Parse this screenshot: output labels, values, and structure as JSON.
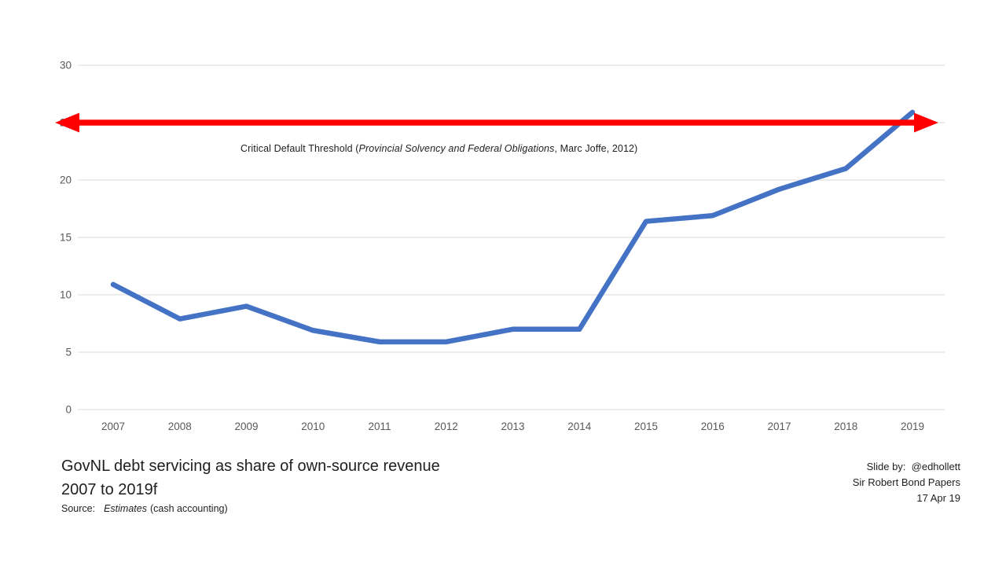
{
  "chart_data": {
    "type": "line",
    "title": "GovNL debt servicing as share of own-source revenue, 2007 to 2019f",
    "categories": [
      "2007",
      "2008",
      "2009",
      "2010",
      "2011",
      "2012",
      "2013",
      "2014",
      "2015",
      "2016",
      "2017",
      "2018",
      "2019"
    ],
    "series": [
      {
        "name": "GovNL debt servicing as share of own-source revenue (%)",
        "color": "#4472C4",
        "values": [
          10.9,
          7.9,
          9.0,
          6.9,
          5.9,
          5.9,
          7.0,
          7.0,
          16.4,
          16.9,
          19.2,
          21.0,
          25.9
        ]
      }
    ],
    "ylim": [
      0,
      30
    ],
    "yticks": [
      0,
      5,
      10,
      15,
      20,
      25,
      30
    ],
    "xlabel": "",
    "ylabel": "",
    "grid": true,
    "legend": "none",
    "threshold": {
      "value": 25,
      "color": "#FF0000",
      "label_prefix": "Critical Default Threshold (",
      "label_italic": "Provincial Solvency and Federal Obligations",
      "label_suffix": ", Marc Joffe, 2012)"
    }
  },
  "footer": {
    "title_line1": "GovNL debt servicing as share of own-source revenue",
    "title_line2": "2007 to 2019f",
    "source_label": "Source:",
    "source_italic": "Estimates",
    "source_suffix": "(cash accounting)"
  },
  "credits": {
    "line1": "Slide by:  @edhollett",
    "line2": "Sir Robert Bond Papers",
    "line3": "17 Apr 19"
  },
  "colors": {
    "line": "#4472C4",
    "threshold": "#FF0000",
    "gridline": "#D9D9D9",
    "tick_label": "#595959",
    "text": "#1F1F1F",
    "background": "#FFFFFF"
  }
}
